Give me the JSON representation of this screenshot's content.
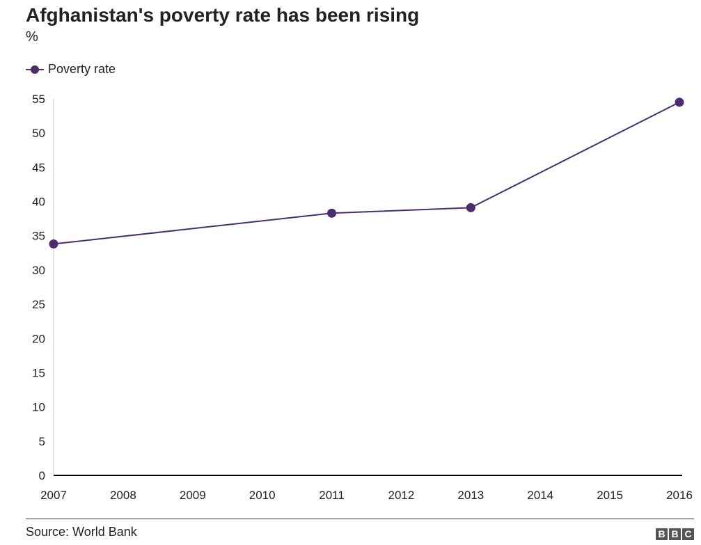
{
  "title": "Afghanistan's poverty rate has been rising",
  "subtitle": "%",
  "legend": {
    "label": "Poverty rate"
  },
  "source": "Source: World Bank",
  "logo": [
    "B",
    "B",
    "C"
  ],
  "colors": {
    "series": "#4b2c6e",
    "baseline": "#000000",
    "axis": "#cccccc"
  },
  "chart_data": {
    "type": "line",
    "title": "Afghanistan's poverty rate has been rising",
    "ylabel": "%",
    "xlabel": "",
    "x_ticks": [
      "2007",
      "2008",
      "2009",
      "2010",
      "2011",
      "2012",
      "2013",
      "2014",
      "2015",
      "2016"
    ],
    "y_ticks": [
      "0",
      "5",
      "10",
      "15",
      "20",
      "25",
      "30",
      "35",
      "40",
      "45",
      "50",
      "55"
    ],
    "xlim": [
      2007,
      2016
    ],
    "ylim": [
      0,
      55
    ],
    "grid": false,
    "legend_position": "top-left",
    "series": [
      {
        "name": "Poverty rate",
        "points": [
          {
            "x": 2007,
            "y": 33.8
          },
          {
            "x": 2011,
            "y": 38.3
          },
          {
            "x": 2013,
            "y": 39.1
          },
          {
            "x": 2016,
            "y": 54.5
          }
        ]
      }
    ]
  }
}
